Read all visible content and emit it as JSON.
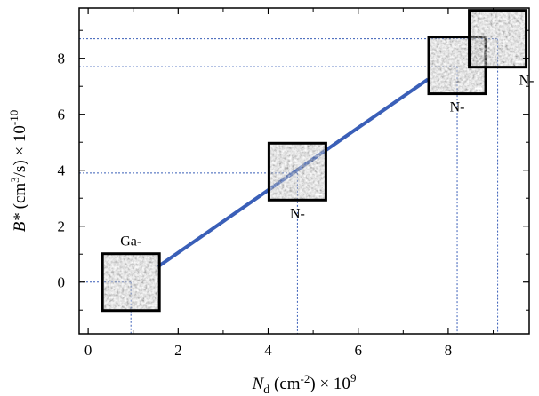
{
  "chart_data": {
    "type": "line",
    "title": "",
    "xlabel": {
      "main": "N",
      "sub": "d",
      "unit_pre": " (cm",
      "unit_sup": "-2",
      "unit_post": ") × 10",
      "exp": "9"
    },
    "ylabel": {
      "main": "B*",
      "unit_pre": " (cm",
      "unit_sup": "3",
      "unit_post": "/s) × 10",
      "exp": "-10"
    },
    "xlim": [
      -0.2,
      9.8
    ],
    "ylim": [
      -1.85,
      9.8
    ],
    "xticks": [
      0,
      2,
      4,
      6,
      8
    ],
    "yticks": [
      0,
      2,
      4,
      6,
      8
    ],
    "grid": false,
    "line_color": "#3a5fb8",
    "guide_color": "#3a5fb8",
    "series": [
      {
        "x": [
          1.55,
          7.55
        ],
        "y": [
          0.55,
          7.25
        ]
      }
    ],
    "insets": [
      {
        "label": "Ga-",
        "label_pos": "above",
        "x_center": 0.95,
        "y_center": 0.0,
        "guide_y": 0.0,
        "guide_x": 0.95
      },
      {
        "label": "N-",
        "label_pos": "below",
        "x_center": 4.65,
        "y_center": 3.95,
        "guide_y": 3.9,
        "guide_x": 4.65
      },
      {
        "label": "N-",
        "label_pos": "below",
        "x_center": 8.2,
        "y_center": 7.75,
        "guide_y": 7.7,
        "guide_x": 8.2
      },
      {
        "label": "N-",
        "label_pos": "right",
        "x_center": 9.1,
        "y_center": 8.7,
        "guide_y": 8.7,
        "guide_x": 9.1
      }
    ]
  }
}
